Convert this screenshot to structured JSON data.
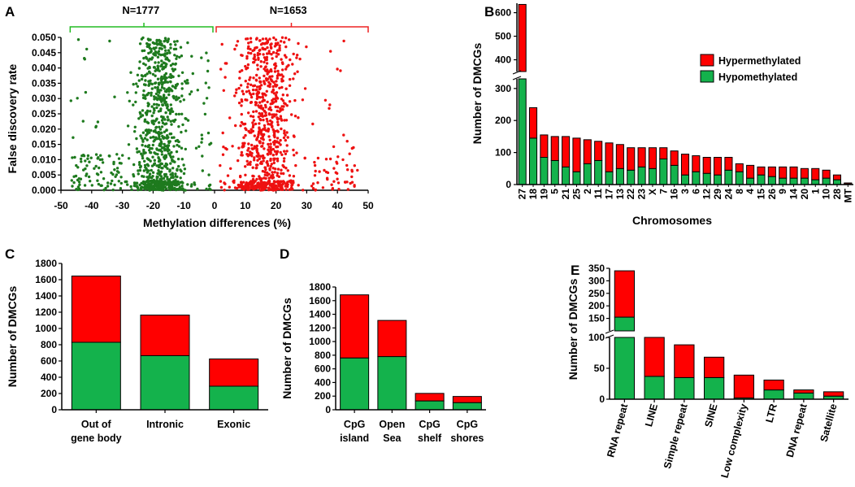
{
  "colors": {
    "hyper": "#ff0000",
    "hypo": "#14b24c",
    "hypo_scatter": "#1e7a1e",
    "hyper_scatter": "#ee1111",
    "bracket_green": "#22bb22",
    "bracket_red": "#ee2222"
  },
  "chart_data": [
    {
      "panel": "A",
      "type": "scatter",
      "xlabel": "Methylation differences (%)",
      "ylabel": "False discovery rate",
      "xlim": [
        -50,
        50
      ],
      "ylim": [
        0,
        0.05
      ],
      "xticks": [
        "-50",
        "-40",
        "-30",
        "-20",
        "-10",
        "0",
        "10",
        "20",
        "30",
        "40",
        "50"
      ],
      "yticks": [
        "0.000",
        "0.005",
        "0.010",
        "0.015",
        "0.020",
        "0.025",
        "0.030",
        "0.035",
        "0.040",
        "0.045",
        "0.050"
      ],
      "groups": [
        {
          "name": "Hypomethylated",
          "label": "N=1777",
          "count": 1777,
          "range": [
            -47,
            0
          ],
          "core_range": [
            -29,
            -7
          ]
        },
        {
          "name": "Hypermethylated",
          "label": "N=1653",
          "count": 1653,
          "range": [
            0,
            47
          ],
          "core_range": [
            3,
            30
          ]
        }
      ]
    },
    {
      "panel": "B",
      "type": "bar",
      "stacked": true,
      "broken_axis": true,
      "xlabel": "Chromosomes",
      "ylabel": "Number of DMCGs",
      "ylim_lower": [
        0,
        330
      ],
      "ylim_upper": [
        350,
        640
      ],
      "yticks_lower": [
        "0",
        "100",
        "200",
        "300"
      ],
      "yticks_upper": [
        "400",
        "500",
        "600"
      ],
      "legend": [
        "Hypermethylated",
        "Hypomethylated"
      ],
      "categories": [
        "27",
        "18",
        "19",
        "5",
        "21",
        "25",
        "2",
        "11",
        "17",
        "13",
        "22",
        "23",
        "X",
        "7",
        "16",
        "3",
        "6",
        "12",
        "29",
        "24",
        "8",
        "4",
        "15",
        "26",
        "9",
        "14",
        "20",
        "1",
        "10",
        "28",
        "MT"
      ],
      "series": [
        {
          "name": "Hypomethylated",
          "values": [
            350,
            145,
            85,
            75,
            55,
            40,
            65,
            75,
            40,
            50,
            45,
            55,
            50,
            80,
            60,
            30,
            40,
            35,
            30,
            45,
            40,
            20,
            30,
            25,
            20,
            20,
            20,
            15,
            20,
            15,
            2
          ]
        },
        {
          "name": "Hypermethylated",
          "values": [
            285,
            95,
            70,
            75,
            95,
            105,
            75,
            60,
            90,
            75,
            70,
            60,
            65,
            35,
            45,
            65,
            50,
            50,
            55,
            40,
            25,
            40,
            25,
            30,
            35,
            35,
            30,
            35,
            25,
            15,
            3
          ]
        }
      ]
    },
    {
      "panel": "C",
      "type": "bar",
      "stacked": true,
      "ylabel": "Number of  DMCGs",
      "ylim": [
        0,
        1800
      ],
      "yticks": [
        "0",
        "200",
        "400",
        "600",
        "800",
        "1000",
        "1200",
        "1400",
        "1600",
        "1800"
      ],
      "categories": [
        [
          "Out of",
          "gene body"
        ],
        [
          "Intronic"
        ],
        [
          "Exonic"
        ]
      ],
      "series": [
        {
          "name": "Hypomethylated",
          "values": [
            830,
            665,
            290
          ]
        },
        {
          "name": "Hypermethylated",
          "values": [
            815,
            500,
            335
          ]
        }
      ]
    },
    {
      "panel": "D",
      "type": "bar",
      "stacked": true,
      "ylabel": "Number of  DMCGs",
      "ylim": [
        0,
        1800
      ],
      "yticks": [
        "0",
        "200",
        "400",
        "600",
        "800",
        "1000",
        "1200",
        "1400",
        "1600",
        "1800"
      ],
      "categories": [
        [
          "CpG",
          "island"
        ],
        [
          "Open",
          "Sea"
        ],
        [
          "CpG",
          "shelf"
        ],
        [
          "CpG",
          "shores"
        ]
      ],
      "series": [
        {
          "name": "Hypomethylated",
          "values": [
            760,
            780,
            130,
            105
          ]
        },
        {
          "name": "Hypermethylated",
          "values": [
            925,
            530,
            110,
            90
          ]
        }
      ]
    },
    {
      "panel": "E",
      "type": "bar",
      "stacked": true,
      "broken_axis": true,
      "ylabel": "Number of  DMCGs",
      "ylim_lower": [
        0,
        100
      ],
      "ylim_upper": [
        100,
        350
      ],
      "yticks_lower": [
        "0",
        "50",
        "100"
      ],
      "yticks_upper": [
        "100",
        "150",
        "200",
        "250",
        "300",
        "350"
      ],
      "categories": [
        "RNA repeat",
        "LINE",
        "Simple repeat",
        "SINE",
        "Low complexity",
        "LTR",
        "DNA repeat",
        "Satellite"
      ],
      "series": [
        {
          "name": "Hypomethylated",
          "values": [
            155,
            37,
            35,
            35,
            2,
            15,
            10,
            5
          ]
        },
        {
          "name": "Hypermethylated",
          "values": [
            185,
            63,
            53,
            33,
            37,
            16,
            5,
            7
          ]
        }
      ]
    }
  ]
}
